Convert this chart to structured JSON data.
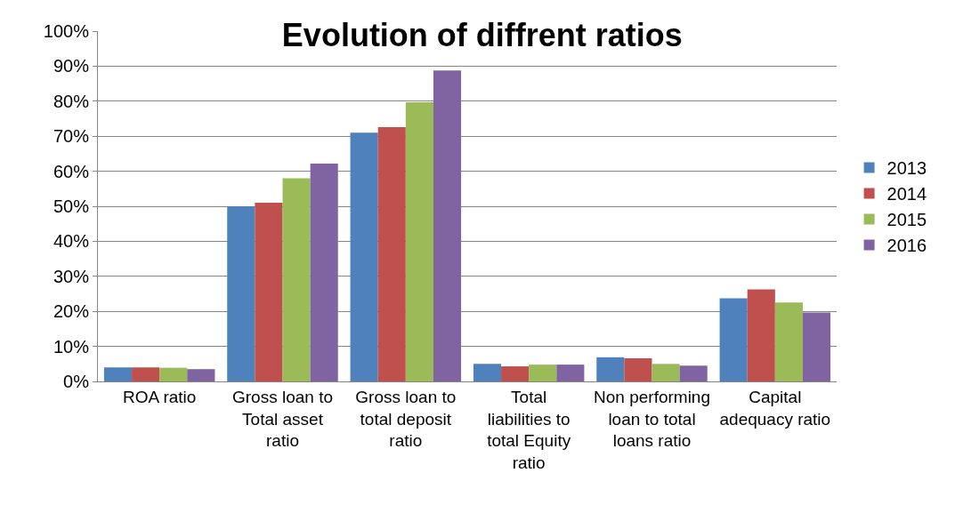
{
  "chart_data": {
    "type": "bar",
    "title": "Evolution of diffrent ratios",
    "categories": [
      "ROA ratio",
      "Gross loan to Total asset ratio",
      "Gross loan to total deposit ratio",
      "Total liabilities to total Equity ratio",
      "Non performing loan to total loans ratio",
      "Capital adequacy ratio"
    ],
    "series": [
      {
        "name": "2013",
        "color": "#4f81bd",
        "values": [
          4.0,
          50,
          71,
          5.0,
          6.9,
          23.7
        ]
      },
      {
        "name": "2014",
        "color": "#c0504d",
        "values": [
          4.0,
          51,
          72.6,
          4.3,
          6.6,
          26.3
        ]
      },
      {
        "name": "2015",
        "color": "#9bbb59",
        "values": [
          3.9,
          58,
          79.7,
          4.8,
          5.0,
          22.5
        ]
      },
      {
        "name": "2016",
        "color": "#8064a2",
        "values": [
          3.5,
          62.2,
          88.8,
          4.8,
          4.5,
          19.7
        ]
      }
    ],
    "ylim": [
      0,
      100
    ],
    "yticks": [
      {
        "value": 0,
        "label": "0%"
      },
      {
        "value": 10,
        "label": "10%"
      },
      {
        "value": 20,
        "label": "20%"
      },
      {
        "value": 30,
        "label": "30%"
      },
      {
        "value": 40,
        "label": "40%"
      },
      {
        "value": 50,
        "label": "50%"
      },
      {
        "value": 60,
        "label": "60%"
      },
      {
        "value": 70,
        "label": "70%"
      },
      {
        "value": 80,
        "label": "80%"
      },
      {
        "value": 90,
        "label": "90%"
      },
      {
        "value": 100,
        "label": "100%"
      }
    ],
    "grid": "y",
    "legend": "right"
  }
}
